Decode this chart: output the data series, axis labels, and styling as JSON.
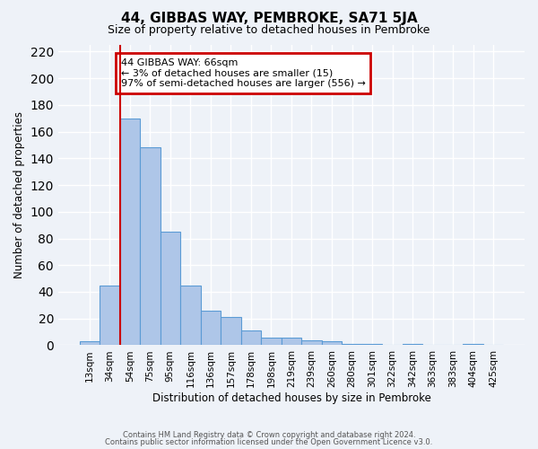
{
  "title": "44, GIBBAS WAY, PEMBROKE, SA71 5JA",
  "subtitle": "Size of property relative to detached houses in Pembroke",
  "xlabel": "Distribution of detached houses by size in Pembroke",
  "ylabel": "Number of detached properties",
  "bin_labels": [
    "13sqm",
    "34sqm",
    "54sqm",
    "75sqm",
    "95sqm",
    "116sqm",
    "136sqm",
    "157sqm",
    "178sqm",
    "198sqm",
    "219sqm",
    "239sqm",
    "260sqm",
    "280sqm",
    "301sqm",
    "322sqm",
    "342sqm",
    "363sqm",
    "383sqm",
    "404sqm",
    "425sqm"
  ],
  "bar_heights": [
    3,
    45,
    170,
    148,
    85,
    45,
    26,
    21,
    11,
    6,
    6,
    4,
    3,
    1,
    1,
    0,
    1,
    0,
    0,
    1,
    0
  ],
  "bar_color": "#aec6e8",
  "bar_edge_color": "#5b9bd5",
  "vline_color": "#cc0000",
  "ylim": [
    0,
    225
  ],
  "yticks": [
    0,
    20,
    40,
    60,
    80,
    100,
    120,
    140,
    160,
    180,
    200,
    220
  ],
  "annotation_title": "44 GIBBAS WAY: 66sqm",
  "annotation_line1": "← 3% of detached houses are smaller (15)",
  "annotation_line2": "97% of semi-detached houses are larger (556) →",
  "annotation_box_color": "#cc0000",
  "footer1": "Contains HM Land Registry data © Crown copyright and database right 2024.",
  "footer2": "Contains public sector information licensed under the Open Government Licence v3.0.",
  "background_color": "#eef2f8",
  "grid_color": "#ffffff"
}
